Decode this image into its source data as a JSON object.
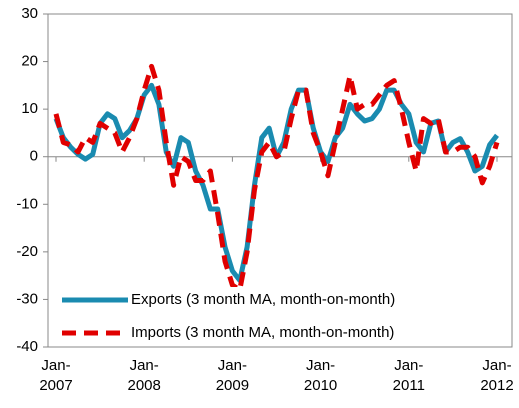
{
  "chart_data": {
    "type": "line",
    "categories": [
      "Jan-\n2007",
      null,
      null,
      null,
      null,
      null,
      null,
      null,
      null,
      null,
      null,
      null,
      "Jan-\n2008",
      null,
      null,
      null,
      null,
      null,
      null,
      null,
      null,
      null,
      null,
      null,
      "Jan-\n2009",
      null,
      null,
      null,
      null,
      null,
      null,
      null,
      null,
      null,
      null,
      null,
      "Jan-\n2010",
      null,
      null,
      null,
      null,
      null,
      null,
      null,
      null,
      null,
      null,
      null,
      "Jan-\n2011",
      null,
      null,
      null,
      null,
      null,
      null,
      null,
      null,
      null,
      null,
      null,
      "Jan-\n2012"
    ],
    "series": [
      {
        "name": "Exports (3 month MA, month-on-month)",
        "color": "#1a8bb0",
        "dash": "solid",
        "values": [
          8,
          4,
          2,
          0.5,
          -0.5,
          0.5,
          7,
          9,
          8,
          4,
          5.5,
          8,
          13,
          15,
          11,
          1,
          -2,
          4,
          3,
          -3,
          -6,
          -11,
          -11,
          -19,
          -24,
          -26,
          -19,
          -6,
          4,
          6,
          0,
          3,
          10,
          14,
          14,
          6,
          1,
          -1,
          4,
          6,
          11,
          9,
          7.5,
          8,
          10,
          14,
          14,
          11,
          9,
          3,
          1,
          7,
          7.5,
          1,
          3,
          3.8,
          1,
          -3,
          -2,
          2.5,
          4.5
        ]
      },
      {
        "name": "Imports (3 month MA, month-on-month)",
        "color": "#e00000",
        "dash": "dashed",
        "values": [
          9,
          3,
          2.5,
          1,
          4,
          3,
          7,
          6,
          5,
          1,
          4,
          8,
          14,
          19,
          14,
          3,
          -6,
          0,
          -1,
          -5,
          -5,
          -3,
          -12,
          -22,
          -27,
          -28,
          -20,
          -7,
          1,
          3,
          0,
          1,
          8,
          14,
          14,
          5,
          1,
          -4,
          3,
          10,
          17,
          10,
          11,
          11,
          13,
          15,
          16,
          10,
          3,
          -3,
          8,
          7,
          8,
          1,
          1,
          2,
          2,
          0,
          -5.5,
          -2,
          3
        ]
      }
    ],
    "ylim": [
      -40,
      30
    ],
    "yticks": [
      -40,
      -30,
      -20,
      -10,
      0,
      10,
      20,
      30
    ],
    "legend": "lower left"
  }
}
